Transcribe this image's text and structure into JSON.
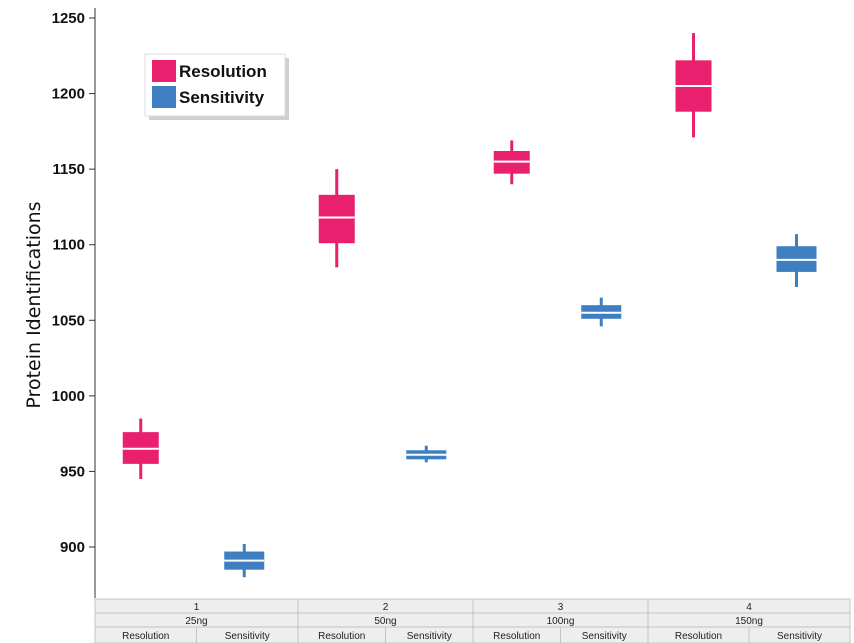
{
  "chart_data": {
    "type": "box",
    "ylabel": "Protein Identifications",
    "ylim": [
      862,
      1255
    ],
    "yticks": [
      900,
      950,
      1000,
      1050,
      1100,
      1150,
      1200,
      1250
    ],
    "groups": [
      {
        "index": "1",
        "label": "25ng",
        "categories": [
          "Resolution",
          "Sensitivity"
        ]
      },
      {
        "index": "2",
        "label": "50ng",
        "categories": [
          "Resolution",
          "Sensitivity"
        ]
      },
      {
        "index": "3",
        "label": "100ng",
        "categories": [
          "Resolution",
          "Sensitivity"
        ]
      },
      {
        "index": "4",
        "label": "150ng",
        "categories": [
          "Resolution",
          "Sensitivity"
        ]
      }
    ],
    "series": [
      {
        "name": "Resolution",
        "color": "#e8206e",
        "boxes": [
          {
            "group": "1",
            "min": 945,
            "q1": 955,
            "median": 965,
            "q3": 976,
            "max": 985
          },
          {
            "group": "2",
            "min": 1085,
            "q1": 1101,
            "median": 1118,
            "q3": 1133,
            "max": 1150
          },
          {
            "group": "3",
            "min": 1140,
            "q1": 1147,
            "median": 1155,
            "q3": 1162,
            "max": 1169
          },
          {
            "group": "4",
            "min": 1171,
            "q1": 1188,
            "median": 1205,
            "q3": 1222,
            "max": 1240
          }
        ]
      },
      {
        "name": "Sensitivity",
        "color": "#3d7fc0",
        "boxes": [
          {
            "group": "1",
            "min": 880,
            "q1": 885,
            "median": 891,
            "q3": 897,
            "max": 902
          },
          {
            "group": "2",
            "min": 956,
            "q1": 958,
            "median": 961,
            "q3": 964,
            "max": 967
          },
          {
            "group": "3",
            "min": 1046,
            "q1": 1051,
            "median": 1055,
            "q3": 1060,
            "max": 1065
          },
          {
            "group": "4",
            "min": 1072,
            "q1": 1082,
            "median": 1090,
            "q3": 1099,
            "max": 1107
          }
        ]
      }
    ],
    "legend": {
      "position": "top-left",
      "entries": [
        "Resolution",
        "Sensitivity"
      ]
    },
    "grid": false
  }
}
